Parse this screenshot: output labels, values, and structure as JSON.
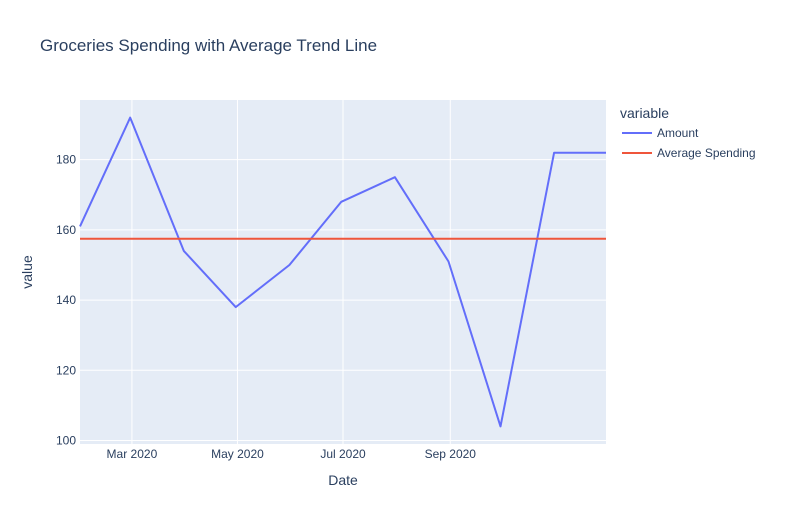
{
  "chart_data": {
    "type": "line",
    "title": "Groceries Spending with Average Trend Line",
    "xlabel": "Date",
    "ylabel": "value",
    "legend_title": "variable",
    "legend_position": "right",
    "x_tick_labels": [
      "Mar 2020",
      "May 2020",
      "Jul 2020",
      "Sep 2020"
    ],
    "y_ticks": [
      100,
      120,
      140,
      160,
      180
    ],
    "ylim": [
      99,
      197
    ],
    "x": [
      "2020-01-31",
      "2020-02-29",
      "2020-03-31",
      "2020-04-30",
      "2020-05-31",
      "2020-06-30",
      "2020-07-31",
      "2020-08-31",
      "2020-09-30",
      "2020-10-31",
      "2020-11-30"
    ],
    "series": [
      {
        "name": "Amount",
        "color": "#636efa",
        "values": [
          161,
          192,
          154,
          138,
          150,
          168,
          175,
          151,
          104,
          182,
          182
        ]
      },
      {
        "name": "Average Spending",
        "color": "#ef553b",
        "values": [
          157.5,
          157.5,
          157.5,
          157.5,
          157.5,
          157.5,
          157.5,
          157.5,
          157.5,
          157.5,
          157.5
        ]
      }
    ],
    "colors": {
      "plot_bg": "#e5ecf6",
      "grid": "#ffffff",
      "text": "#2a3f5f"
    }
  }
}
